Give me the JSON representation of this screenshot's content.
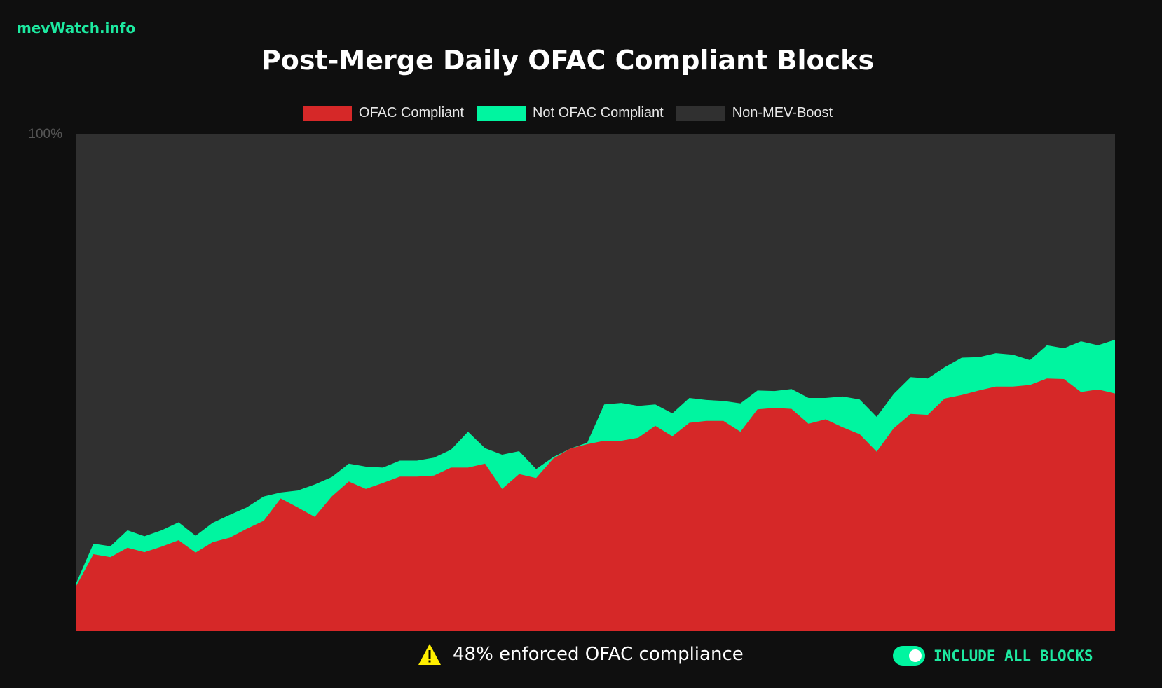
{
  "brand": "mevWatch.info",
  "colors": {
    "ofac": "#d62828",
    "not_ofac": "#00f5a0",
    "non_mev": "#303030",
    "accent": "#1de9a0",
    "warning": "#ffee00"
  },
  "chart_data": {
    "type": "area",
    "stacked": true,
    "title": "Post-Merge Daily OFAC Compliant Blocks",
    "y_tick_label": "100%",
    "ylim": [
      0,
      100
    ],
    "legend_position": "top",
    "grid": false,
    "legend": [
      "OFAC Compliant",
      "Not OFAC Compliant",
      "Non-MEV-Boost"
    ],
    "series": [
      {
        "name": "OFAC Compliant",
        "values": [
          9.2,
          15.5,
          14.9,
          16.8,
          15.9,
          17.0,
          18.3,
          15.8,
          17.9,
          18.8,
          20.6,
          22.2,
          26.7,
          24.9,
          23.0,
          27.1,
          30.1,
          28.6,
          29.8,
          31.1,
          31.1,
          31.3,
          32.9,
          32.9,
          33.7,
          28.6,
          31.6,
          30.8,
          34.7,
          36.7,
          37.6,
          38.3,
          38.3,
          38.9,
          41.3,
          39.2,
          41.9,
          42.3,
          42.3,
          40.1,
          44.6,
          44.9,
          44.7,
          41.7,
          42.6,
          41.0,
          39.6,
          36.1,
          40.8,
          43.7,
          43.5,
          46.8,
          47.5,
          48.4,
          49.2,
          49.2,
          49.5,
          50.8,
          50.7,
          48.1,
          48.6,
          47.8
        ]
      },
      {
        "name": "Not OFAC Compliant",
        "values": [
          0.6,
          2.1,
          2.2,
          3.5,
          3.2,
          3.3,
          3.6,
          3.4,
          3.9,
          4.6,
          4.3,
          4.9,
          1.2,
          3.4,
          6.5,
          3.9,
          3.6,
          4.5,
          3.1,
          3.2,
          3.2,
          3.6,
          3.6,
          7.2,
          3.1,
          6.9,
          4.6,
          1.8,
          0.3,
          0.0,
          0.3,
          7.3,
          7.6,
          6.4,
          4.3,
          4.6,
          5.0,
          4.2,
          4.0,
          5.7,
          3.8,
          3.4,
          4.0,
          5.2,
          4.3,
          6.2,
          7.0,
          7.0,
          6.9,
          7.4,
          7.3,
          6.3,
          7.5,
          6.7,
          6.7,
          6.4,
          5.0,
          6.7,
          6.2,
          10.2,
          8.9,
          10.8
        ]
      },
      {
        "name": "Non-MEV-Boost",
        "values": "remainder to 100%"
      }
    ]
  },
  "footer": {
    "warning_icon": "warning-triangle",
    "compliance_text": "48% enforced OFAC compliance"
  },
  "toggle": {
    "label": "INCLUDE ALL BLOCKS",
    "on": true
  }
}
